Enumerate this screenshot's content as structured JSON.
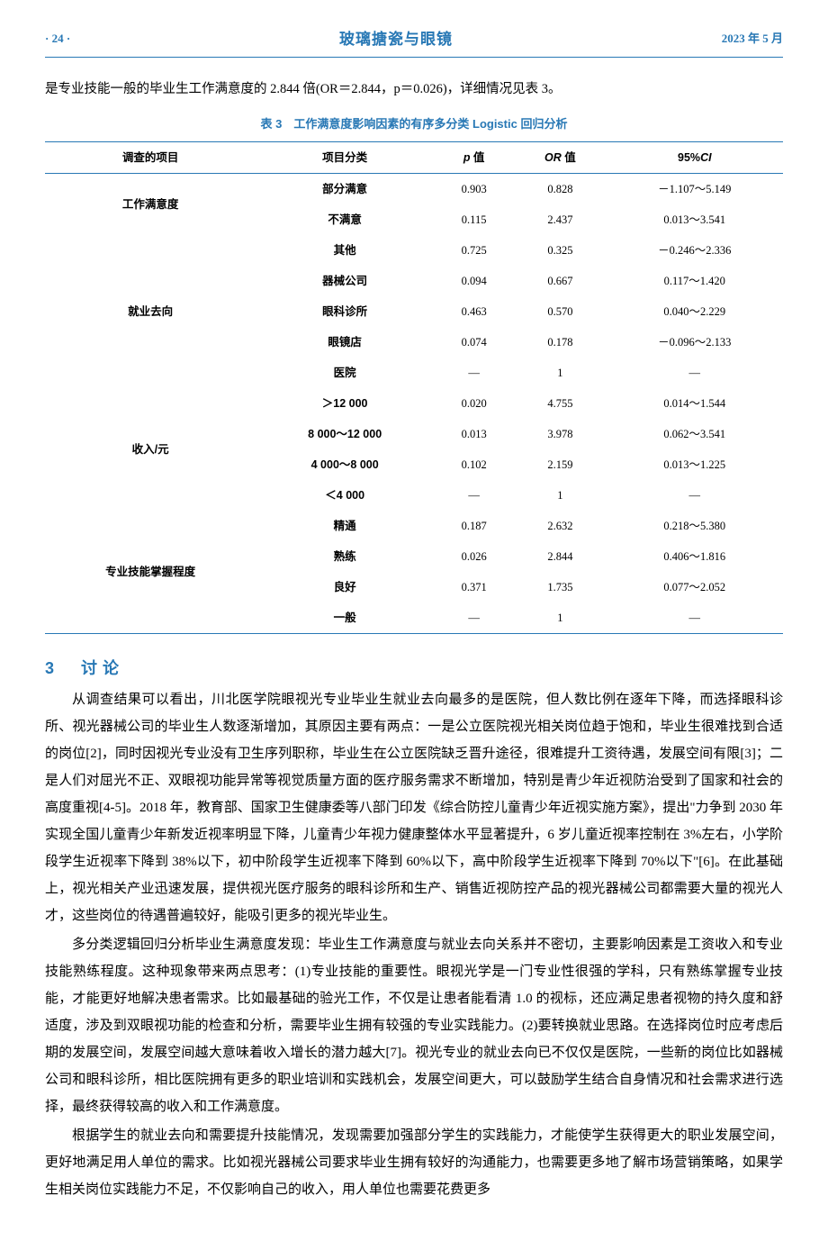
{
  "header": {
    "page_number": "· 24 ·",
    "journal": "玻璃搪瓷与眼镜",
    "date": "2023 年 5 月"
  },
  "intro_text": "是专业技能一般的毕业生工作满意度的 2.844 倍(OR＝2.844，p＝0.026)，详细情况见表 3。",
  "table": {
    "caption": "表 3　工作满意度影响因素的有序多分类 Logistic 回归分析",
    "headers": [
      "调查的项目",
      "项目分类",
      "p 值",
      "OR 值",
      "95%CI"
    ],
    "groups": [
      {
        "label": "工作满意度",
        "rows": [
          {
            "item": "部分满意",
            "p": "0.903",
            "or": "0.828",
            "ci": "－1.107～5.149"
          },
          {
            "item": "不满意",
            "p": "0.115",
            "or": "2.437",
            "ci": "0.013～3.541"
          }
        ]
      },
      {
        "label": "就业去向",
        "rows": [
          {
            "item": "其他",
            "p": "0.725",
            "or": "0.325",
            "ci": "－0.246～2.336"
          },
          {
            "item": "器械公司",
            "p": "0.094",
            "or": "0.667",
            "ci": "0.117～1.420"
          },
          {
            "item": "眼科诊所",
            "p": "0.463",
            "or": "0.570",
            "ci": "0.040～2.229"
          },
          {
            "item": "眼镜店",
            "p": "0.074",
            "or": "0.178",
            "ci": "－0.096～2.133"
          },
          {
            "item": "医院",
            "p": "—",
            "or": "1",
            "ci": "—"
          }
        ]
      },
      {
        "label": "收入/元",
        "rows": [
          {
            "item": "＞12 000",
            "p": "0.020",
            "or": "4.755",
            "ci": "0.014～1.544"
          },
          {
            "item": "8 000～12 000",
            "p": "0.013",
            "or": "3.978",
            "ci": "0.062～3.541"
          },
          {
            "item": "4 000～8 000",
            "p": "0.102",
            "or": "2.159",
            "ci": "0.013～1.225"
          },
          {
            "item": "＜4 000",
            "p": "—",
            "or": "1",
            "ci": "—"
          }
        ]
      },
      {
        "label": "专业技能掌握程度",
        "rows": [
          {
            "item": "精通",
            "p": "0.187",
            "or": "2.632",
            "ci": "0.218～5.380"
          },
          {
            "item": "熟练",
            "p": "0.026",
            "or": "2.844",
            "ci": "0.406～1.816"
          },
          {
            "item": "良好",
            "p": "0.371",
            "or": "1.735",
            "ci": "0.077～2.052"
          },
          {
            "item": "一般",
            "p": "—",
            "or": "1",
            "ci": "—"
          }
        ]
      }
    ]
  },
  "section": {
    "number": "3",
    "title": "讨论",
    "paragraphs": [
      "从调查结果可以看出，川北医学院眼视光专业毕业生就业去向最多的是医院，但人数比例在逐年下降，而选择眼科诊所、视光器械公司的毕业生人数逐渐增加，其原因主要有两点：一是公立医院视光相关岗位趋于饱和，毕业生很难找到合适的岗位[2]，同时因视光专业没有卫生序列职称，毕业生在公立医院缺乏晋升途径，很难提升工资待遇，发展空间有限[3]；二是人们对屈光不正、双眼视功能异常等视觉质量方面的医疗服务需求不断增加，特别是青少年近视防治受到了国家和社会的高度重视[4-5]。2018 年，教育部、国家卫生健康委等八部门印发《综合防控儿童青少年近视实施方案》，提出\"力争到 2030 年实现全国儿童青少年新发近视率明显下降，儿童青少年视力健康整体水平显著提升，6 岁儿童近视率控制在 3%左右，小学阶段学生近视率下降到 38%以下，初中阶段学生近视率下降到 60%以下，高中阶段学生近视率下降到 70%以下\"[6]。在此基础上，视光相关产业迅速发展，提供视光医疗服务的眼科诊所和生产、销售近视防控产品的视光器械公司都需要大量的视光人才，这些岗位的待遇普遍较好，能吸引更多的视光毕业生。",
      "多分类逻辑回归分析毕业生满意度发现：毕业生工作满意度与就业去向关系并不密切，主要影响因素是工资收入和专业技能熟练程度。这种现象带来两点思考：(1)专业技能的重要性。眼视光学是一门专业性很强的学科，只有熟练掌握专业技能，才能更好地解决患者需求。比如最基础的验光工作，不仅是让患者能看清 1.0 的视标，还应满足患者视物的持久度和舒适度，涉及到双眼视功能的检查和分析，需要毕业生拥有较强的专业实践能力。(2)要转换就业思路。在选择岗位时应考虑后期的发展空间，发展空间越大意味着收入增长的潜力越大[7]。视光专业的就业去向已不仅仅是医院，一些新的岗位比如器械公司和眼科诊所，相比医院拥有更多的职业培训和实践机会，发展空间更大，可以鼓励学生结合自身情况和社会需求进行选择，最终获得较高的收入和工作满意度。",
      "根据学生的就业去向和需要提升技能情况，发现需要加强部分学生的实践能力，才能使学生获得更大的职业发展空间，更好地满足用人单位的需求。比如视光器械公司要求毕业生拥有较好的沟通能力，也需要更多地了解市场营销策略，如果学生相关岗位实践能力不足，不仅影响自己的收入，用人单位也需要花费更多"
    ]
  },
  "colors": {
    "accent": "#2878b5",
    "text": "#000000",
    "background": "#ffffff"
  }
}
